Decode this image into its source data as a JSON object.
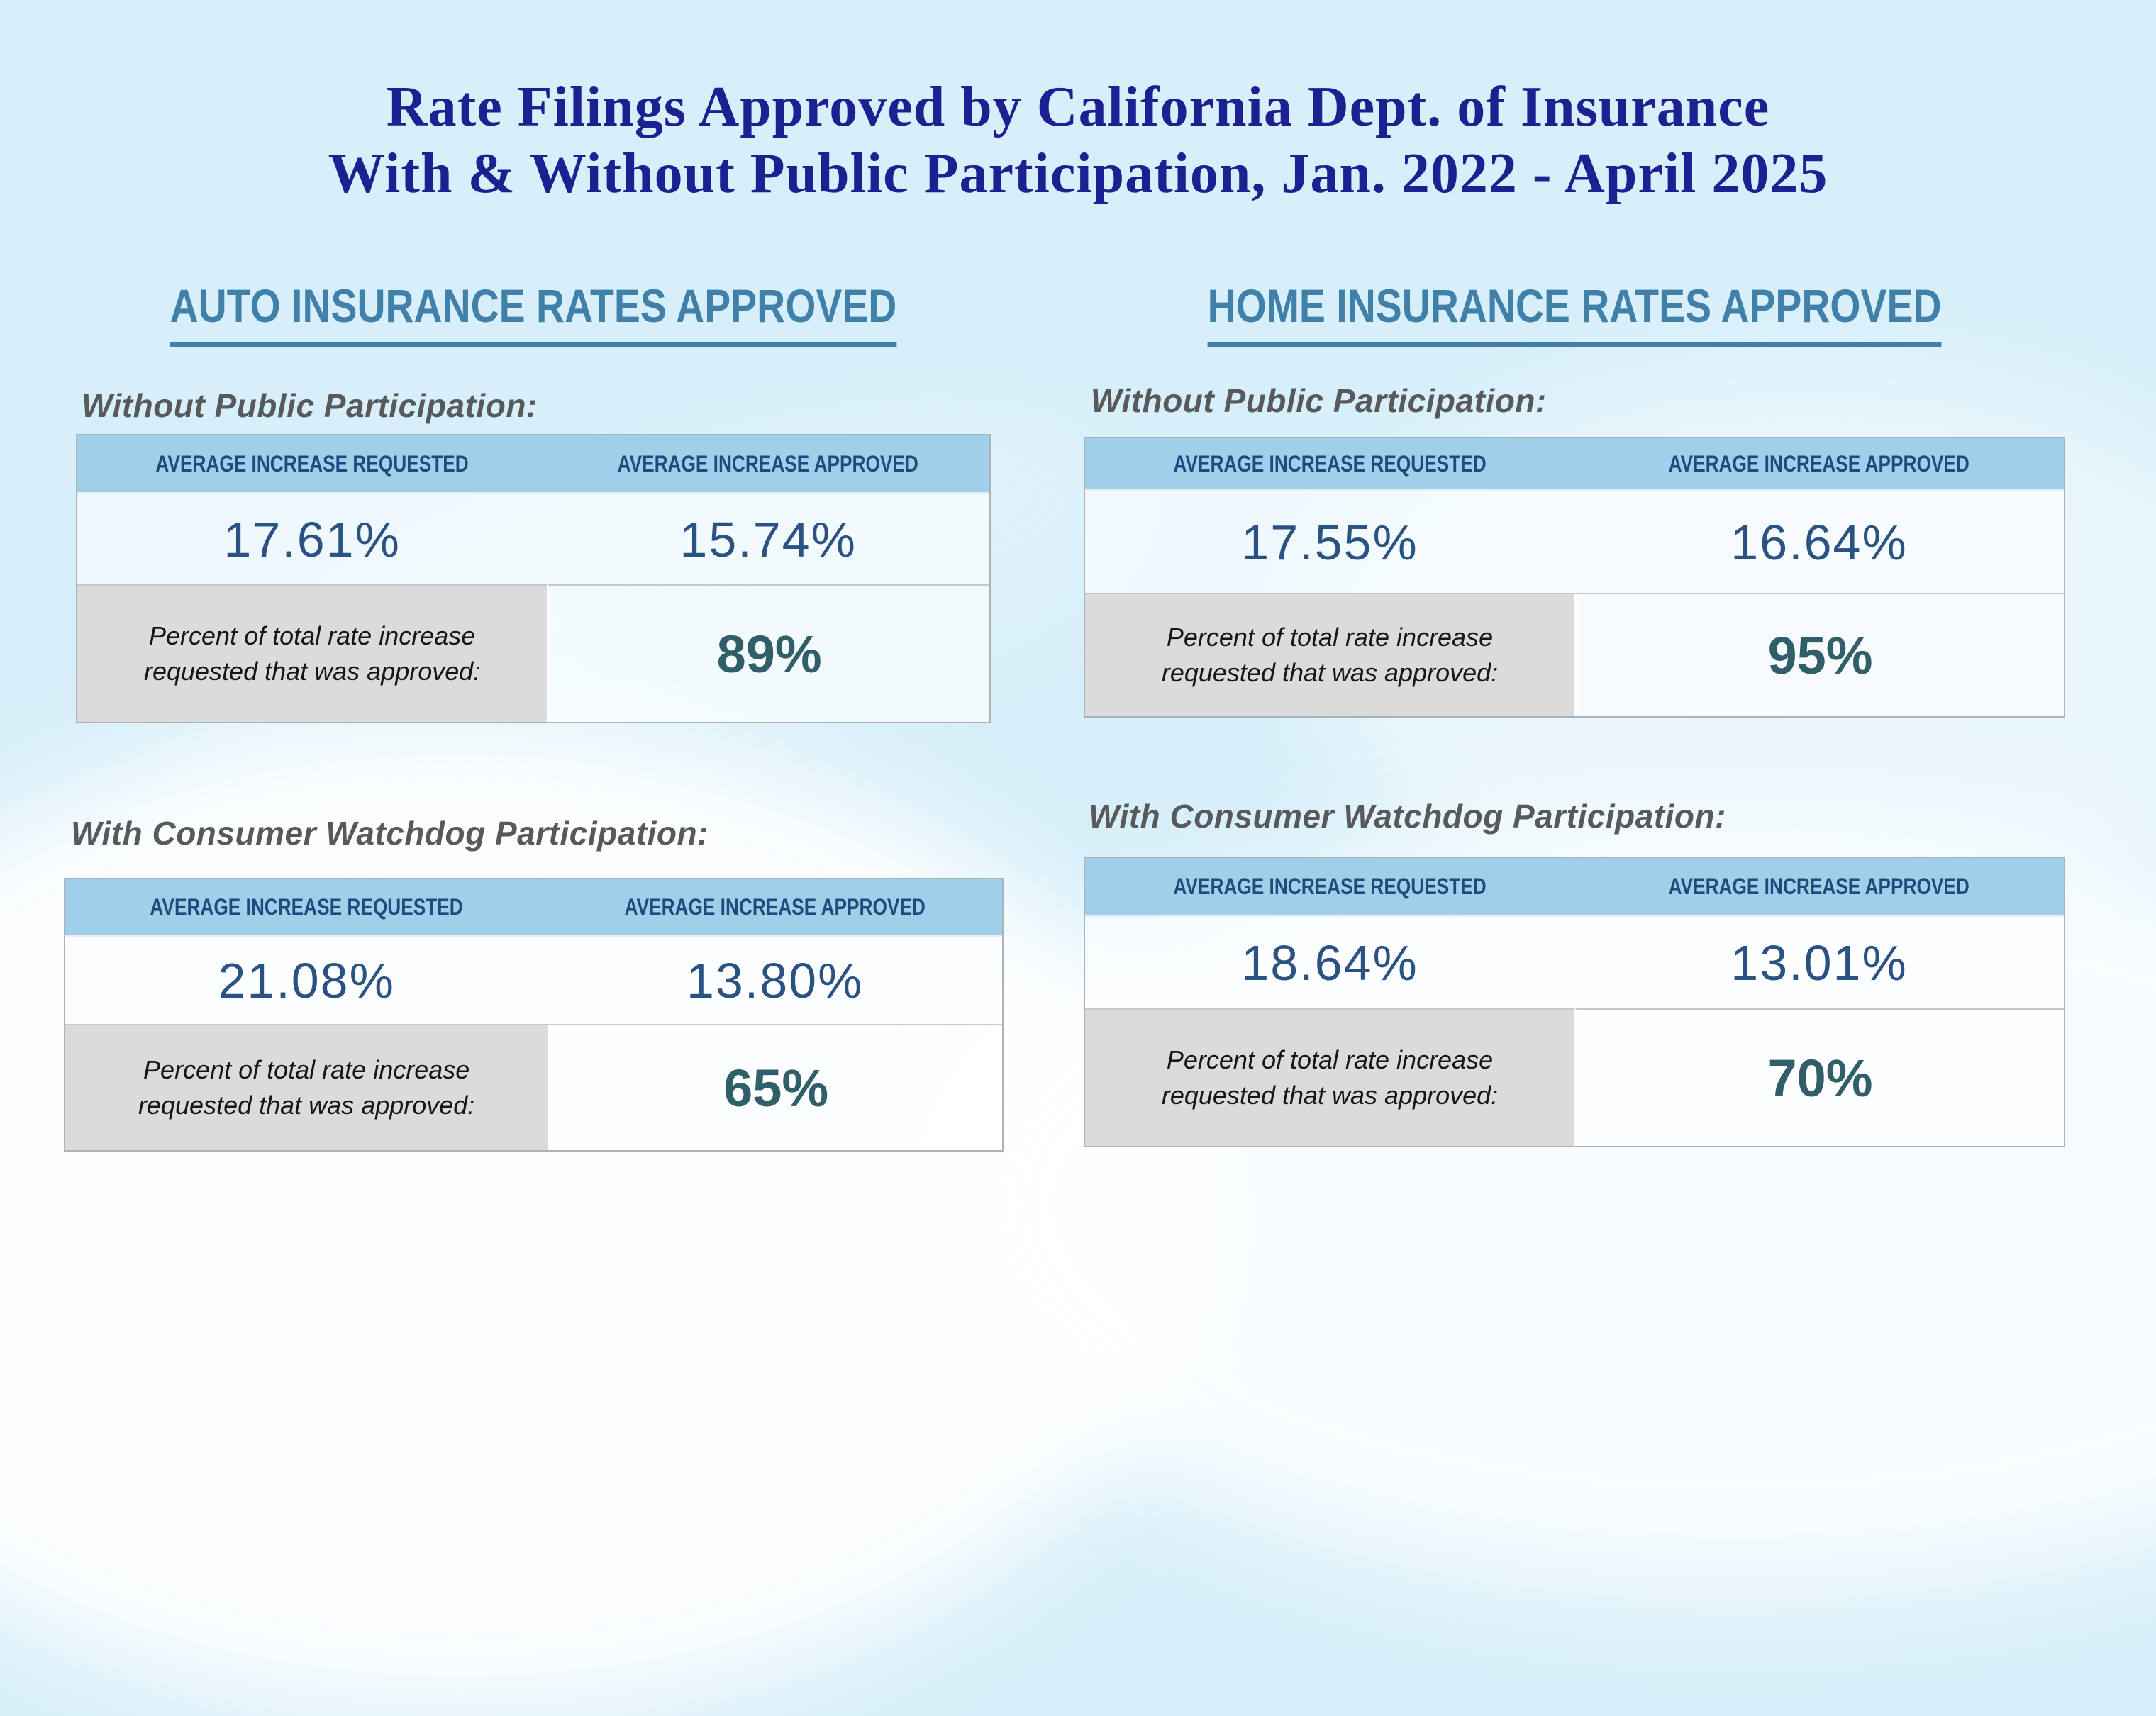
{
  "title": {
    "line1": "Rate Filings Approved by California Dept. of Insurance",
    "line2": "With & Without Public Participation, Jan. 2022 - April 2025"
  },
  "columns": [
    {
      "heading": "AUTO INSURANCE RATES APPROVED",
      "sections": [
        {
          "label": "Without Public Participation:",
          "table": {
            "headers": {
              "requested": "AVERAGE INCREASE REQUESTED",
              "approved": "AVERAGE INCREASE APPROVED"
            },
            "requested_value": "17.61%",
            "approved_value": "15.74%",
            "footer_label": "Percent of total rate increase requested that was approved:",
            "footer_value": "89%"
          }
        },
        {
          "label": "With Consumer Watchdog Participation:",
          "table": {
            "headers": {
              "requested": "AVERAGE INCREASE REQUESTED",
              "approved": "AVERAGE INCREASE APPROVED"
            },
            "requested_value": "21.08%",
            "approved_value": "13.80%",
            "footer_label": "Percent of total rate increase requested that was approved:",
            "footer_value": "65%"
          }
        }
      ]
    },
    {
      "heading": "HOME INSURANCE RATES APPROVED",
      "sections": [
        {
          "label": "Without Public Participation:",
          "table": {
            "headers": {
              "requested": "AVERAGE INCREASE REQUESTED",
              "approved": "AVERAGE INCREASE APPROVED"
            },
            "requested_value": "17.55%",
            "approved_value": "16.64%",
            "footer_label": "Percent of total rate increase requested that was approved:",
            "footer_value": "95%"
          }
        },
        {
          "label": "With Consumer Watchdog Participation:",
          "table": {
            "headers": {
              "requested": "AVERAGE INCREASE REQUESTED",
              "approved": "AVERAGE INCREASE APPROVED"
            },
            "requested_value": "18.64%",
            "approved_value": "13.01%",
            "footer_label": "Percent of total rate increase requested that was approved:",
            "footer_value": "70%"
          }
        }
      ]
    }
  ],
  "colors": {
    "page_background": "#D7EFFA",
    "title_text": "#1B2191",
    "section_heading": "#4180A8",
    "table_header_background": "#A0CFE9",
    "table_header_text": "#1C4B7E",
    "value_text": "#2A5282",
    "footer_value_text": "#305E69",
    "footer_label_background": "#DBDBDB",
    "section_label_text": "#58595B"
  },
  "chart_data": {
    "type": "table",
    "title": "Rate Filings Approved by California Dept. of Insurance With & Without Public Participation, Jan. 2022 - April 2025",
    "groups": [
      {
        "category": "Auto Insurance",
        "participation": "Without Public Participation",
        "avg_increase_requested_pct": 17.61,
        "avg_increase_approved_pct": 15.74,
        "share_of_requested_approved_pct": 89
      },
      {
        "category": "Auto Insurance",
        "participation": "With Consumer Watchdog Participation",
        "avg_increase_requested_pct": 21.08,
        "avg_increase_approved_pct": 13.8,
        "share_of_requested_approved_pct": 65
      },
      {
        "category": "Home Insurance",
        "participation": "Without Public Participation",
        "avg_increase_requested_pct": 17.55,
        "avg_increase_approved_pct": 16.64,
        "share_of_requested_approved_pct": 95
      },
      {
        "category": "Home Insurance",
        "participation": "With Consumer Watchdog Participation",
        "avg_increase_requested_pct": 18.64,
        "avg_increase_approved_pct": 13.01,
        "share_of_requested_approved_pct": 70
      }
    ]
  }
}
